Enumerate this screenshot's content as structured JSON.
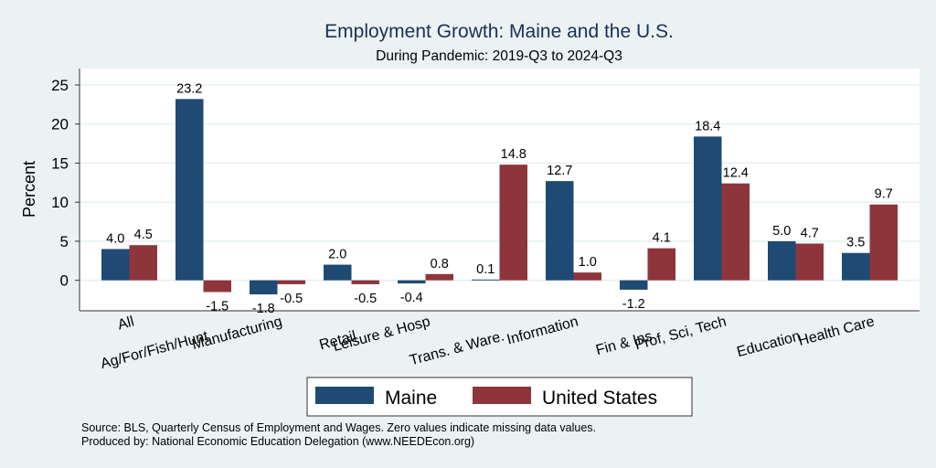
{
  "chart_data": {
    "type": "bar",
    "title": "Employment Growth: Maine and the U.S.",
    "subtitle": "During Pandemic: 2019-Q3 to 2024-Q3",
    "xlabel": "",
    "ylabel": "Percent",
    "ylim": [
      -3.9,
      27.1
    ],
    "yticks": [
      0,
      5,
      10,
      15,
      20,
      25
    ],
    "grid": true,
    "legend_position": "bottom",
    "categories": [
      "All",
      "Ag/For/Fish/Hunt",
      "Manufacturing",
      "Retail",
      "Leisure & Hosp",
      "Trans. & Ware.",
      "Information",
      "Fin & Ins",
      "Prof, Sci, Tech",
      "Education",
      "Health Care"
    ],
    "series": [
      {
        "name": "Maine",
        "color": "#1f4a73",
        "values": [
          4.0,
          23.2,
          -1.8,
          2.0,
          -0.4,
          0.1,
          12.7,
          -1.2,
          18.4,
          5.0,
          3.5
        ],
        "labels": [
          "4.0",
          "23.2",
          "-1.8",
          "2.0",
          "-0.4",
          "0.1",
          "12.7",
          "-1.2",
          "18.4",
          "5.0",
          "3.5"
        ]
      },
      {
        "name": "United States",
        "color": "#8e353c",
        "values": [
          4.5,
          -1.5,
          -0.5,
          -0.5,
          0.8,
          14.8,
          1.0,
          4.1,
          12.4,
          4.7,
          9.7
        ],
        "labels": [
          "4.5",
          "-1.5",
          "-0.5",
          "-0.5",
          "0.8",
          "14.8",
          "1.0",
          "4.1",
          "12.4",
          "4.7",
          "9.7"
        ]
      }
    ],
    "notes": [
      "Source: BLS, Quarterly Census of Employment and Wages. Zero values indicate missing data values.",
      "Produced by: National Economic Education Delegation (www.NEEDEcon.org)"
    ]
  }
}
